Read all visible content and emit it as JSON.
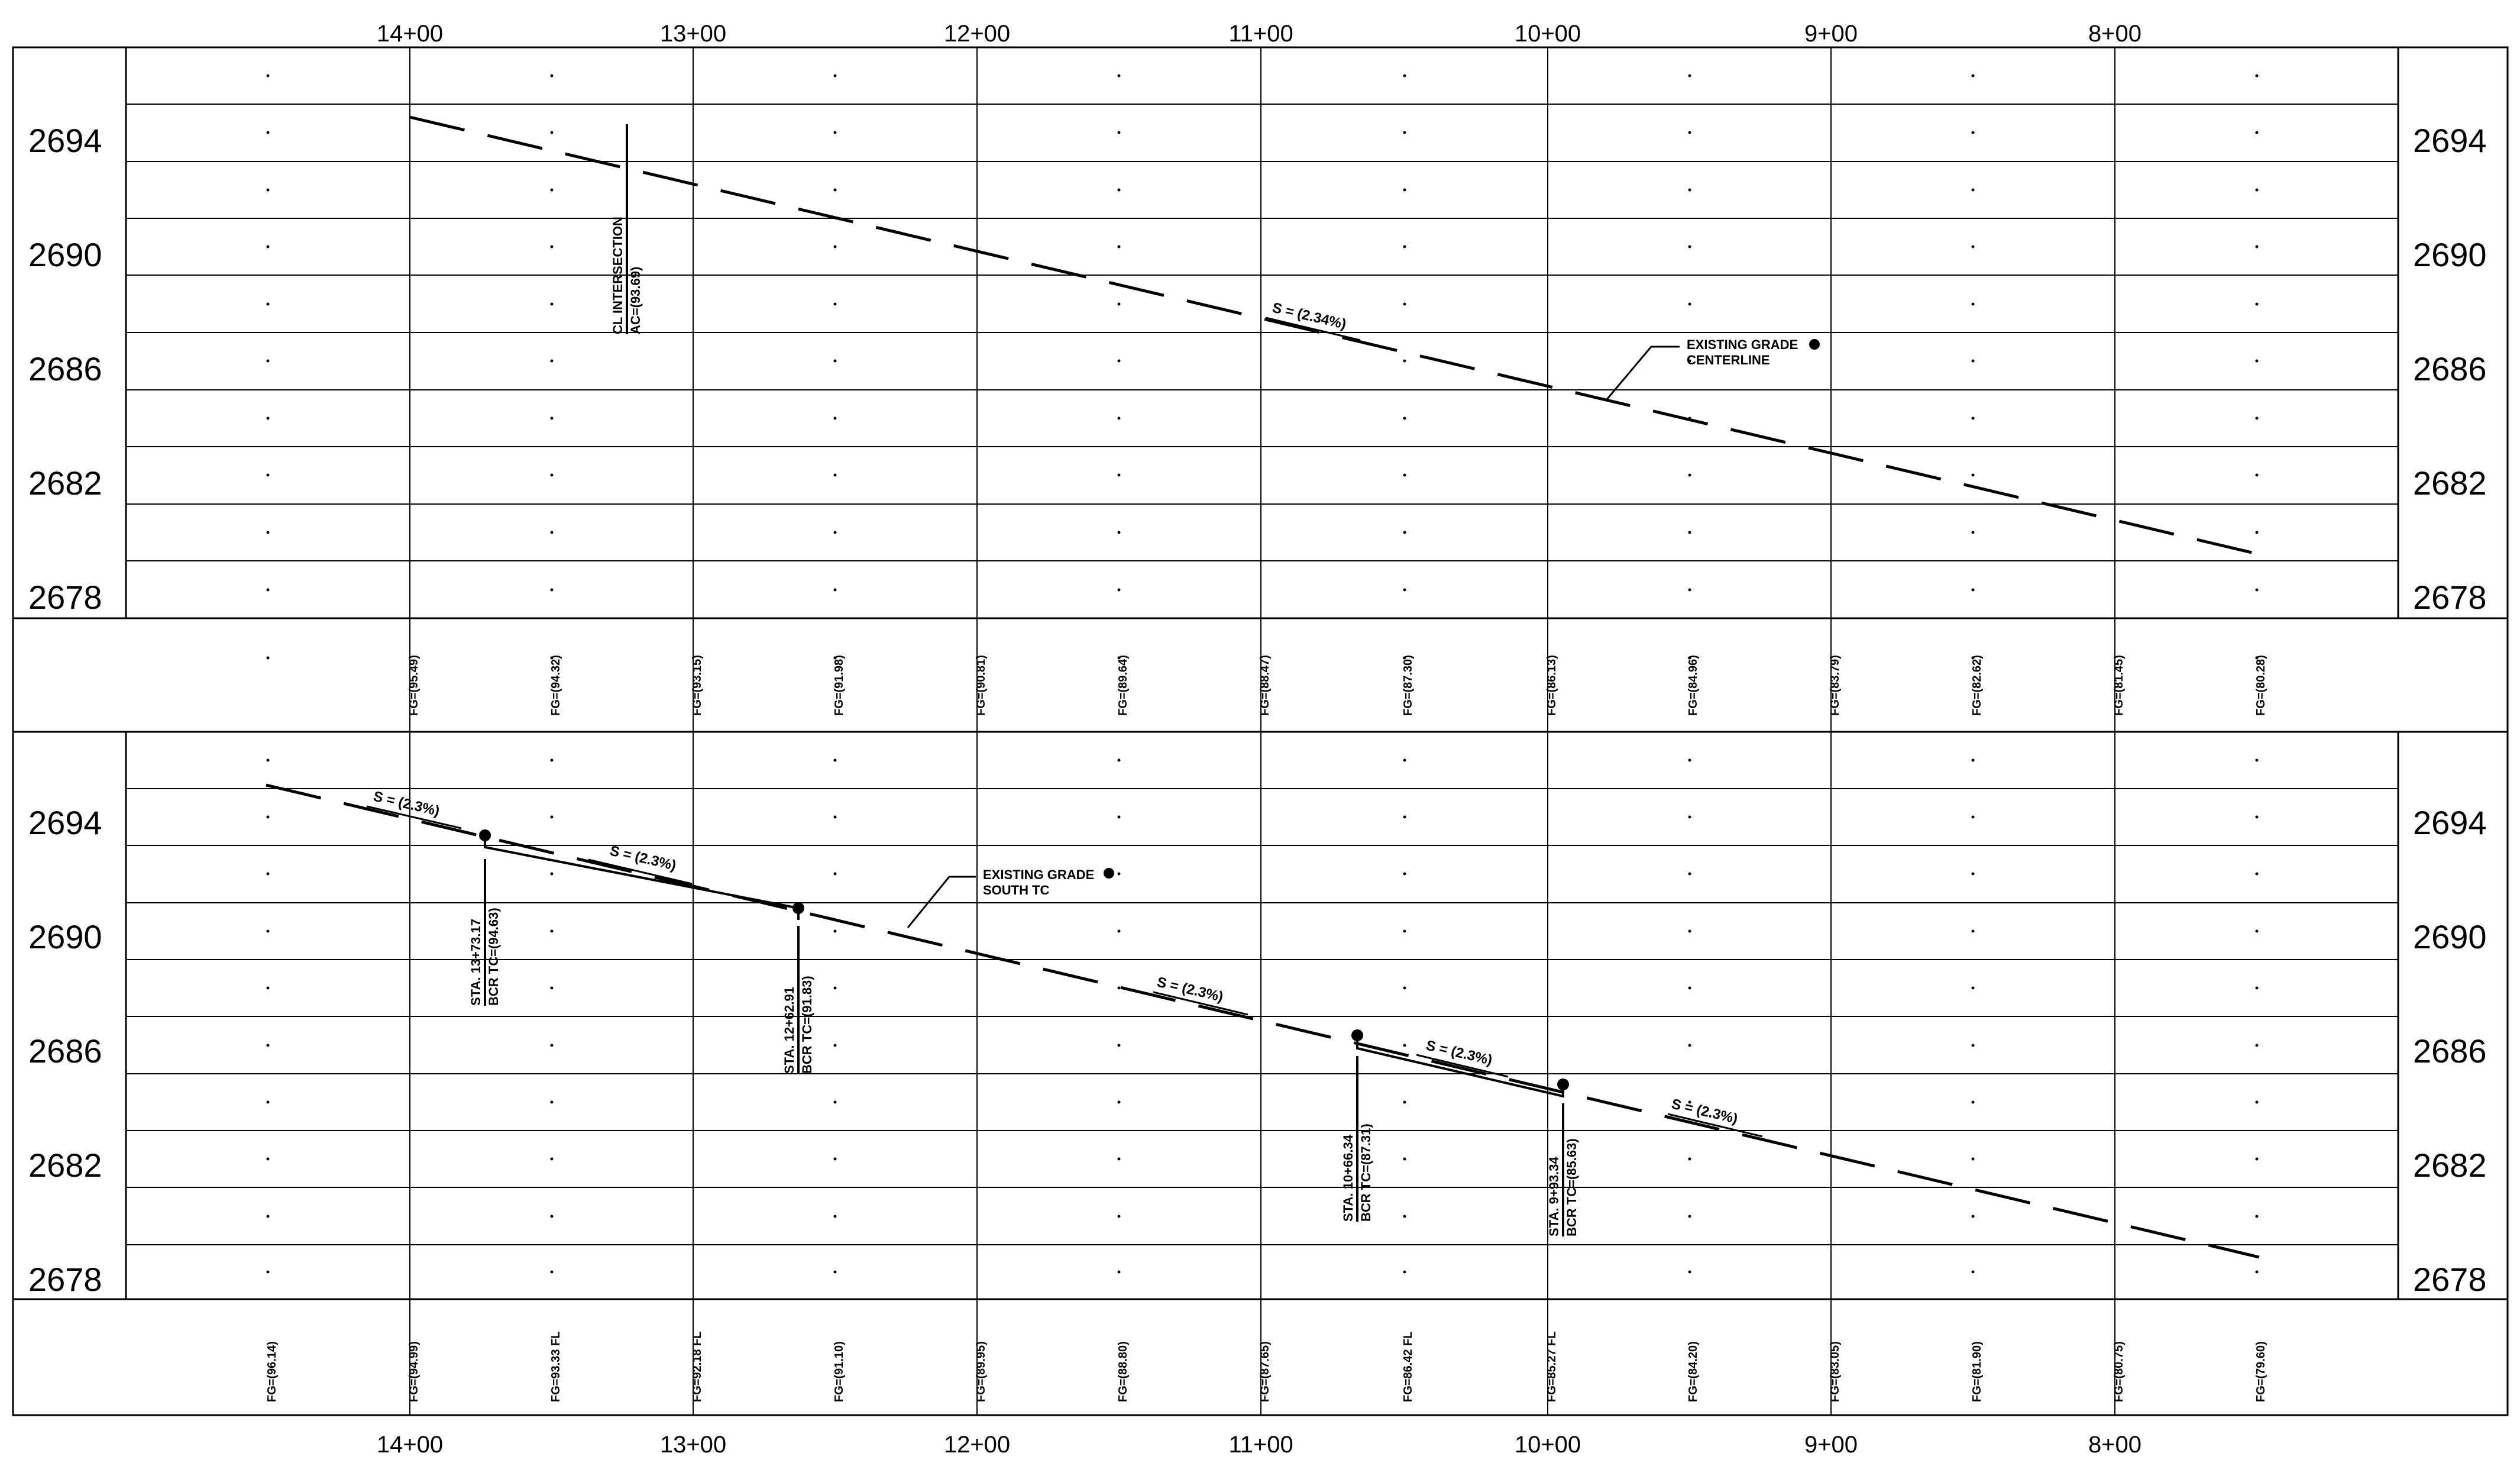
{
  "stations": [
    "14+00",
    "13+00",
    "12+00",
    "11+00",
    "10+00",
    "9+00",
    "8+00"
  ],
  "elevations": [
    "2694",
    "2690",
    "2686",
    "2682",
    "2678"
  ],
  "top_profile": {
    "slope_label": "S = (2.34%)",
    "existing_grade_label": [
      "EXISTING GRADE",
      "CENTERLINE"
    ],
    "intersection_label": [
      "CL INTERSECTION",
      "AC=(93.69)"
    ]
  },
  "middle_fg_labels": [
    "FG=(95.49)",
    "FG=(94.32)",
    "FG=(93.15)",
    "FG=(91.98)",
    "FG=(90.81)",
    "FG=(89.64)",
    "FG=(88.47)",
    "FG=(87.30)",
    "FG=(86.13)",
    "FG=(84.96)",
    "FG=(83.79)",
    "FG=(82.62)",
    "FG=(81.45)",
    "FG=(80.28)"
  ],
  "bottom_profile": {
    "slope_labels": [
      "S = (2.3%)",
      "S = (2.3%)",
      "S = (2.3%)",
      "S = (2.3%)",
      "S = (2.3%)"
    ],
    "existing_grade_label": [
      "EXISTING GRADE",
      "SOUTH TC"
    ],
    "callouts": [
      [
        "STA. 13+73.17",
        "BCR TC=(94.63)"
      ],
      [
        "STA. 12+62.91",
        "BCR TC=(91.83)"
      ],
      [
        "STA. 10+66.34",
        "BCR TC=(87.31)"
      ],
      [
        "STA. 9+93.34",
        "BCR TC=(85.63)"
      ]
    ]
  },
  "bottom_fg_labels": [
    "FG=(96.14)",
    "FG=(94.99)",
    "FG=93.33 FL",
    "FG=92.18 FL",
    "FG=(91.10)",
    "FG=(89.95)",
    "FG=(88.80)",
    "FG=(87.65)",
    "FG=86.42 FL",
    "FG=85.27 FL",
    "FG=(84.20)",
    "FG=(83.05)",
    "FG=(81.90)",
    "FG=(80.75)",
    "FG=(79.60)"
  ]
}
